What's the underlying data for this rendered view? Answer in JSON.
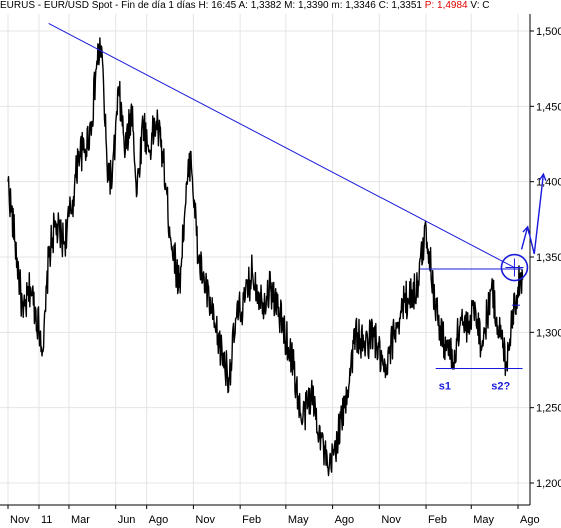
{
  "header": {
    "symbol": "EURUS",
    "description": "EUR/USD Spot",
    "period": "Fin de día 1 días",
    "H_label": "H:",
    "H_value": "16:45",
    "A_label": "A:",
    "A_value": "1,3382",
    "M_label": "M:",
    "M_value": "1,3390",
    "m_label": "m:",
    "m_value": "1,3346",
    "C_label": "C:",
    "C_value": "1,3351",
    "P_label": "P:",
    "P_value": "1,4984",
    "V_label": "V:",
    "V_value": "C"
  },
  "colors": {
    "price_line": "#000000",
    "annotation": "#1a1adb",
    "grid": "#e4e4e4",
    "highlight": "#e00000",
    "background": "#ffffff"
  },
  "chart_data": {
    "type": "line",
    "title": "",
    "xlabel": "",
    "ylabel": "",
    "ylim": [
      1.19,
      1.52
    ],
    "grid": true,
    "y_ticks": [
      "1,500",
      "1,450",
      "1,400",
      "1,350",
      "1,300",
      "1,250",
      "1,200"
    ],
    "y_tick_values": [
      1.5,
      1.45,
      1.4,
      1.35,
      1.3,
      1.25,
      1.2
    ],
    "x_ticks": [
      "Nov",
      "11",
      "Mar",
      "Jun",
      "Ago",
      "Nov",
      "Feb",
      "May",
      "Ago",
      "Nov",
      "Feb",
      "May",
      "Ago"
    ],
    "x_tick_dates": [
      "2010-11-01",
      "2011-01-01",
      "2011-03-01",
      "2011-06-01",
      "2011-08-01",
      "2011-11-01",
      "2012-02-01",
      "2012-05-01",
      "2012-08-01",
      "2012-11-01",
      "2013-02-01",
      "2013-05-01",
      "2013-08-01"
    ],
    "series": [
      {
        "values": [
          [
            "2010-11-01",
            1.4
          ],
          [
            "2010-11-15",
            1.36
          ],
          [
            "2010-12-01",
            1.31
          ],
          [
            "2010-12-15",
            1.33
          ],
          [
            "2011-01-10",
            1.29
          ],
          [
            "2011-01-20",
            1.35
          ],
          [
            "2011-02-01",
            1.37
          ],
          [
            "2011-02-20",
            1.36
          ],
          [
            "2011-03-10",
            1.39
          ],
          [
            "2011-03-20",
            1.42
          ],
          [
            "2011-04-01",
            1.42
          ],
          [
            "2011-04-15",
            1.44
          ],
          [
            "2011-04-25",
            1.48
          ],
          [
            "2011-05-04",
            1.49
          ],
          [
            "2011-05-15",
            1.41
          ],
          [
            "2011-05-25",
            1.4
          ],
          [
            "2011-06-07",
            1.46
          ],
          [
            "2011-06-20",
            1.42
          ],
          [
            "2011-07-04",
            1.45
          ],
          [
            "2011-07-12",
            1.39
          ],
          [
            "2011-07-25",
            1.44
          ],
          [
            "2011-08-05",
            1.42
          ],
          [
            "2011-08-20",
            1.44
          ],
          [
            "2011-09-01",
            1.42
          ],
          [
            "2011-09-15",
            1.37
          ],
          [
            "2011-10-04",
            1.33
          ],
          [
            "2011-10-15",
            1.38
          ],
          [
            "2011-10-27",
            1.42
          ],
          [
            "2011-11-10",
            1.35
          ],
          [
            "2011-11-25",
            1.33
          ],
          [
            "2011-12-15",
            1.3
          ],
          [
            "2012-01-10",
            1.27
          ],
          [
            "2012-01-25",
            1.31
          ],
          [
            "2012-02-10",
            1.32
          ],
          [
            "2012-02-25",
            1.34
          ],
          [
            "2012-03-15",
            1.32
          ],
          [
            "2012-04-01",
            1.33
          ],
          [
            "2012-04-20",
            1.31
          ],
          [
            "2012-05-15",
            1.28
          ],
          [
            "2012-06-01",
            1.24
          ],
          [
            "2012-06-20",
            1.26
          ],
          [
            "2012-07-10",
            1.23
          ],
          [
            "2012-07-24",
            1.205
          ],
          [
            "2012-08-10",
            1.23
          ],
          [
            "2012-08-25",
            1.25
          ],
          [
            "2012-09-15",
            1.3
          ],
          [
            "2012-10-01",
            1.29
          ],
          [
            "2012-10-20",
            1.3
          ],
          [
            "2012-11-13",
            1.27
          ],
          [
            "2012-11-30",
            1.3
          ],
          [
            "2012-12-20",
            1.32
          ],
          [
            "2013-01-15",
            1.33
          ],
          [
            "2013-02-01",
            1.37
          ],
          [
            "2013-02-15",
            1.33
          ],
          [
            "2013-03-01",
            1.3
          ],
          [
            "2013-03-15",
            1.29
          ],
          [
            "2013-03-27",
            1.28
          ],
          [
            "2013-04-10",
            1.31
          ],
          [
            "2013-04-25",
            1.3
          ],
          [
            "2013-05-08",
            1.32
          ],
          [
            "2013-05-22",
            1.29
          ],
          [
            "2013-06-10",
            1.33
          ],
          [
            "2013-06-20",
            1.31
          ],
          [
            "2013-07-09",
            1.28
          ],
          [
            "2013-07-20",
            1.31
          ],
          [
            "2013-08-01",
            1.33
          ],
          [
            "2013-08-10",
            1.335
          ]
        ]
      }
    ],
    "annotations": {
      "trendline": [
        [
          "2011-01-20",
          1.505
        ],
        [
          "2013-07-25",
          1.343
        ]
      ],
      "resistance_line": [
        [
          "2013-01-20",
          1.342
        ],
        [
          "2013-08-10",
          1.342
        ]
      ],
      "support_line": [
        [
          "2013-02-20",
          1.276
        ],
        [
          "2013-08-10",
          1.276
        ]
      ],
      "short_level_line": [
        [
          "2013-07-20",
          1.318
        ],
        [
          "2013-08-05",
          1.318
        ]
      ],
      "circle_center": [
        "2013-07-25",
        1.343
      ],
      "path_arrows": [
        [
          "2013-08-08",
          1.355
        ],
        [
          "2013-08-20",
          1.37
        ],
        [
          "2013-09-02",
          1.352
        ],
        [
          "2013-09-20",
          1.405
        ]
      ],
      "labels": [
        {
          "text": "s1",
          "date": "2013-03-10",
          "value": 1.262
        },
        {
          "text": "s2?",
          "date": "2013-06-28",
          "value": 1.262
        }
      ]
    }
  }
}
